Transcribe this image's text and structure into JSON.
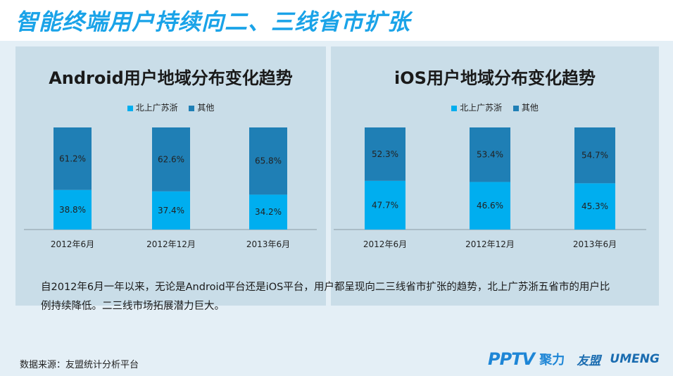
{
  "page_title": "智能终端用户持续向二、三线省市扩张",
  "colors": {
    "title": "#1aa3e8",
    "series_bsgsz": "#00aeef",
    "series_other": "#1f7fb5"
  },
  "legend": [
    "北上广苏浙",
    "其他"
  ],
  "chart_data": [
    {
      "type": "bar",
      "stacked": true,
      "title": "Android用户地域分布变化趋势",
      "categories": [
        "2012年6月",
        "2012年12月",
        "2013年6月"
      ],
      "series": [
        {
          "name": "北上广苏浙",
          "values": [
            38.8,
            37.4,
            34.2
          ],
          "labels": [
            "38.8%",
            "37.4%",
            "34.2%"
          ]
        },
        {
          "name": "其他",
          "values": [
            61.2,
            62.6,
            65.8
          ],
          "labels": [
            "61.2%",
            "62.6%",
            "65.8%"
          ]
        }
      ],
      "ylim": [
        0,
        100
      ],
      "legend_position": "top-center",
      "grid": false
    },
    {
      "type": "bar",
      "stacked": true,
      "title": "iOS用户地域分布变化趋势",
      "categories": [
        "2012年6月",
        "2012年12月",
        "2013年6月"
      ],
      "series": [
        {
          "name": "北上广苏浙",
          "values": [
            47.7,
            46.6,
            45.3
          ],
          "labels": [
            "47.7%",
            "46.6%",
            "45.3%"
          ]
        },
        {
          "name": "其他",
          "values": [
            52.3,
            53.4,
            54.7
          ],
          "labels": [
            "52.3%",
            "53.4%",
            "54.7%"
          ]
        }
      ],
      "ylim": [
        0,
        100
      ],
      "legend_position": "top-center",
      "grid": false
    }
  ],
  "description": "自2012年6月一年以来，无论是Android平台还是iOS平台，用户都呈现向二三线省市扩张的趋势，北上广苏浙五省市的用户比例持续降低。二三线市场拓展潜力巨大。",
  "source": "数据来源：友盟统计分析平台",
  "logos": {
    "pptv": "PPTV",
    "pptv_cn": "聚力",
    "umeng_cn": "友盟",
    "umeng": "UMENG"
  }
}
